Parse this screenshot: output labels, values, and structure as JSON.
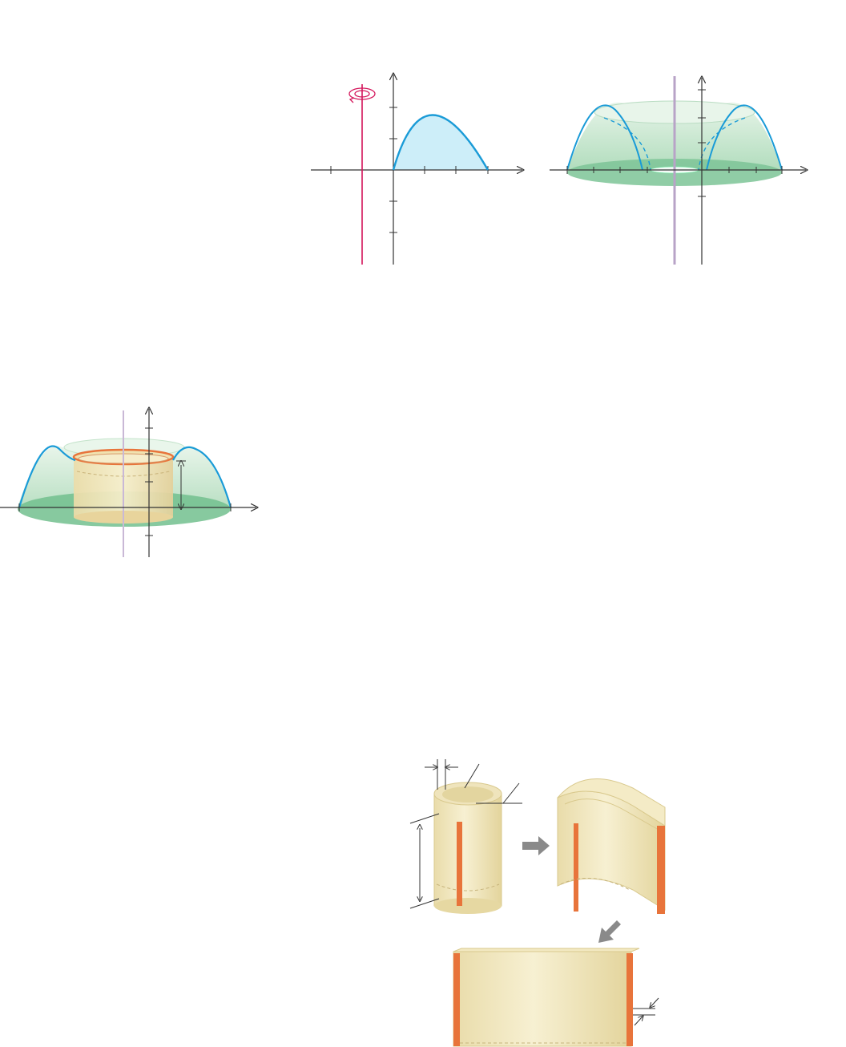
{
  "colors": {
    "axis": "#333333",
    "curve": "#1a9bd7",
    "region_fill": "#cdeef9",
    "rotation_axis": "#d4145a",
    "solid_green": "#9fd3b0",
    "solid_green_dark": "#6fbf8c",
    "shell_cream": "#f2e6b8",
    "shell_edge": "#e2cf86",
    "shell_orange": "#e8743b",
    "arrow_gray": "#8a8a8a"
  },
  "icons": {
    "rotation": "rotation-arrow-icon",
    "process_arrow": "gray-right-arrow-icon",
    "process_arrow_2": "gray-down-left-arrow-icon"
  }
}
